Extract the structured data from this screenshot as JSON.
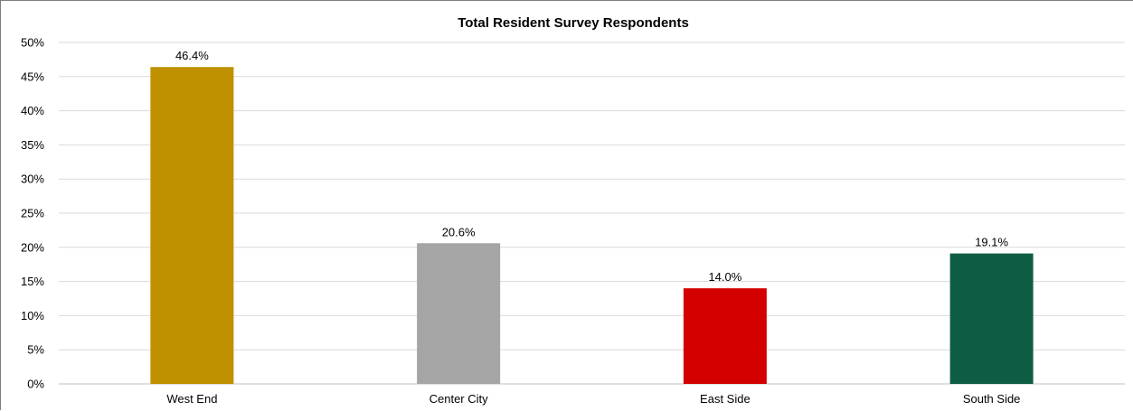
{
  "chart_data": {
    "type": "bar",
    "title": "Total Resident Survey Respondents",
    "xlabel": "",
    "ylabel": "",
    "categories": [
      "West End",
      "Center City",
      "East Side",
      "South Side"
    ],
    "values": [
      46.4,
      20.6,
      14.0,
      19.1
    ],
    "value_labels": [
      "46.4%",
      "20.6%",
      "14.0%",
      "19.1%"
    ],
    "colors": [
      "#bf9000",
      "#a5a5a5",
      "#d40000",
      "#0e5c43"
    ],
    "ylim": [
      0,
      50
    ],
    "yticks": [
      0,
      5,
      10,
      15,
      20,
      25,
      30,
      35,
      40,
      45,
      50
    ],
    "ytick_labels": [
      "0%",
      "5%",
      "10%",
      "15%",
      "20%",
      "25%",
      "30%",
      "35%",
      "40%",
      "45%",
      "50%"
    ],
    "grid": true,
    "legend": "none"
  }
}
